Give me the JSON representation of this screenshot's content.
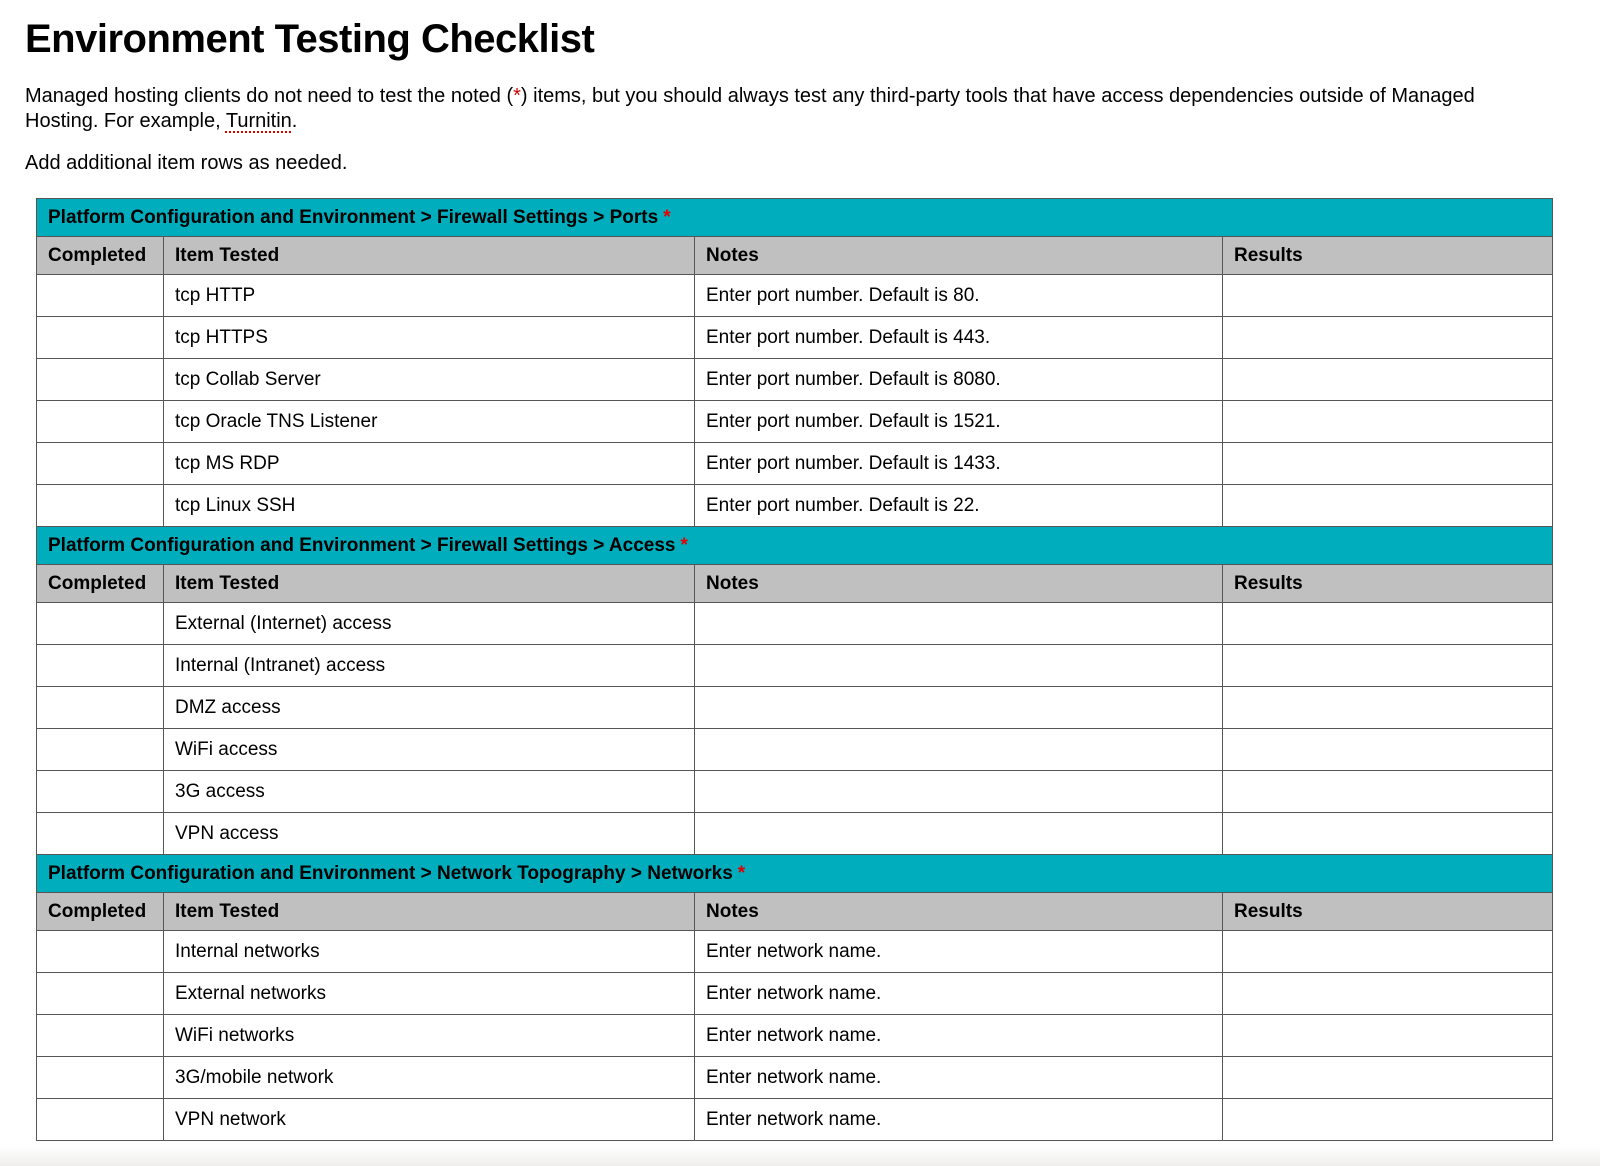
{
  "page": {
    "title": "Environment Testing Checklist",
    "intro": {
      "before_asterisk": "Managed hosting clients do not need to test the noted (",
      "asterisk": "*",
      "after_asterisk": ") items, but you should always test any third-party tools that have access dependencies outside of Managed Hosting. For example, ",
      "spellcheck_word": "Turnitin",
      "tail": "."
    },
    "note": "Add additional item rows as needed."
  },
  "colors": {
    "section_header_bg": "#00adbd",
    "column_header_bg": "#c0c0c0",
    "intro_asterisk_red": "#cc0000",
    "header_asterisk_red": "#e60000",
    "spellcheck_underline_red": "#d40000",
    "table_border": "#565656"
  },
  "sections": [
    {
      "header": "Platform Configuration and Environment > Firewall Settings > Ports",
      "asterisk": "*",
      "columns": [
        "Completed",
        "Item Tested",
        "Notes",
        "Results"
      ],
      "rows": [
        {
          "completed": "",
          "item": "tcp HTTP",
          "notes": "Enter port number. Default is 80.",
          "results": ""
        },
        {
          "completed": "",
          "item": "tcp HTTPS",
          "notes": "Enter port number. Default is 443.",
          "results": ""
        },
        {
          "completed": "",
          "item": "tcp Collab Server",
          "notes": "Enter port number. Default is 8080.",
          "results": ""
        },
        {
          "completed": "",
          "item": "tcp Oracle TNS Listener",
          "notes": "Enter port number. Default is 1521.",
          "results": ""
        },
        {
          "completed": "",
          "item": "tcp MS RDP",
          "notes": "Enter port number. Default is 1433.",
          "results": ""
        },
        {
          "completed": "",
          "item": "tcp Linux SSH",
          "notes": "Enter port number. Default is 22.",
          "results": ""
        }
      ]
    },
    {
      "header": "Platform Configuration and Environment > Firewall Settings > Access",
      "asterisk": "*",
      "columns": [
        "Completed",
        "Item Tested",
        "Notes",
        "Results"
      ],
      "rows": [
        {
          "completed": "",
          "item": "External (Internet) access",
          "notes": "",
          "results": ""
        },
        {
          "completed": "",
          "item": "Internal (Intranet) access",
          "notes": "",
          "results": ""
        },
        {
          "completed": "",
          "item": "DMZ access",
          "notes": "",
          "results": ""
        },
        {
          "completed": "",
          "item": "WiFi access",
          "notes": "",
          "results": ""
        },
        {
          "completed": "",
          "item": "3G access",
          "notes": "",
          "results": ""
        },
        {
          "completed": "",
          "item": "VPN access",
          "notes": "",
          "results": ""
        }
      ]
    },
    {
      "header": "Platform Configuration and Environment > Network Topography > Networks",
      "asterisk": "*",
      "columns": [
        "Completed",
        "Item Tested",
        "Notes",
        "Results"
      ],
      "rows": [
        {
          "completed": "",
          "item": "Internal networks",
          "notes": "Enter network name.",
          "results": ""
        },
        {
          "completed": "",
          "item": "External networks",
          "notes": "Enter network name.",
          "results": ""
        },
        {
          "completed": "",
          "item": "WiFi networks",
          "notes": "Enter network name.",
          "results": ""
        },
        {
          "completed": "",
          "item": "3G/mobile network",
          "notes": "Enter network name.",
          "results": ""
        },
        {
          "completed": "",
          "item": "VPN network",
          "notes": "Enter network name.",
          "results": ""
        }
      ]
    }
  ]
}
